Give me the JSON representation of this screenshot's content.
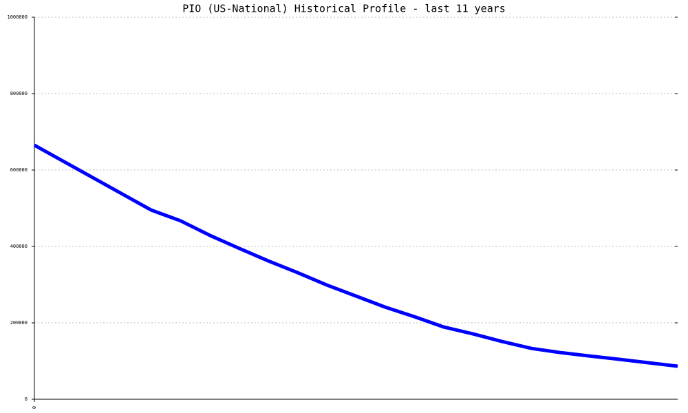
{
  "chart_data": {
    "type": "line",
    "title": "PIO (US-National) Historical Profile - last 11 years",
    "x": [
      0,
      4,
      5,
      6,
      7,
      8,
      9,
      10,
      11,
      12,
      13,
      14,
      15,
      16,
      17,
      18,
      19,
      20,
      21,
      22
    ],
    "series": [
      {
        "color": "#0000ff",
        "values": [
          665000,
          495000,
          467000,
          429000,
          395000,
          362000,
          331500,
          299000,
          270000,
          241000,
          216000,
          189000,
          171000,
          151000,
          133000,
          122000,
          113000,
          104500,
          95500,
          86500
        ]
      }
    ],
    "xlim": [
      0,
      22
    ],
    "xticks": [
      0
    ],
    "ylim": [
      0,
      1000000
    ],
    "yticks": [
      0,
      200000,
      400000,
      600000,
      800000,
      1000000
    ],
    "grid": true
  }
}
